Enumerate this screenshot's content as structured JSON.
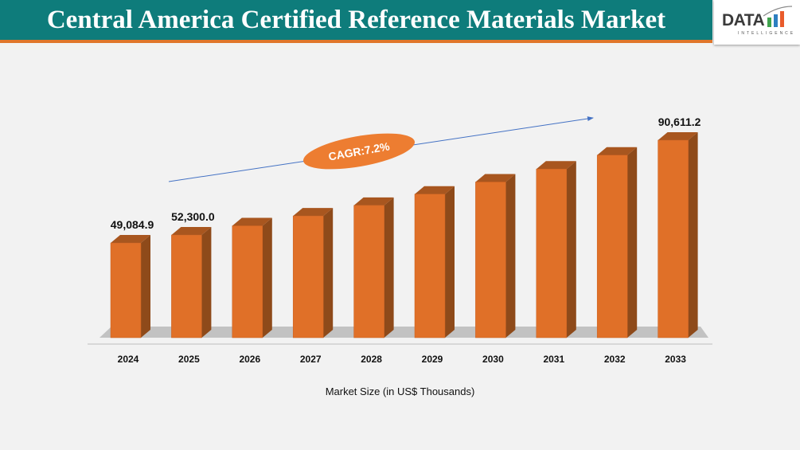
{
  "header": {
    "title": "Central America Certified Reference Materials Market"
  },
  "logo": {
    "text": "DATA",
    "subtext": "INTELLIGENCE"
  },
  "colors": {
    "header": "#0e7c7b",
    "accent": "#e0762b",
    "bar_front": "#e07028",
    "bar_side": "#8e4a1a",
    "bar_top": "#a8561f"
  },
  "chart_data": {
    "type": "bar",
    "categories": [
      "2024",
      "2025",
      "2026",
      "2027",
      "2028",
      "2029",
      "2030",
      "2031",
      "2032",
      "2033"
    ],
    "values": [
      49084.9,
      52300.0,
      56018,
      60000,
      64265,
      68834,
      73728,
      78969,
      84583,
      90611.2
    ],
    "data_labels": {
      "0": "49,084.9",
      "1": "52,300.0",
      "9": "90,611.2"
    },
    "xlabel": "Market Size (in US$ Thousands)",
    "ylabel": "",
    "annotation": "CAGR:7.2%",
    "grid": false,
    "style": "3d-column"
  }
}
